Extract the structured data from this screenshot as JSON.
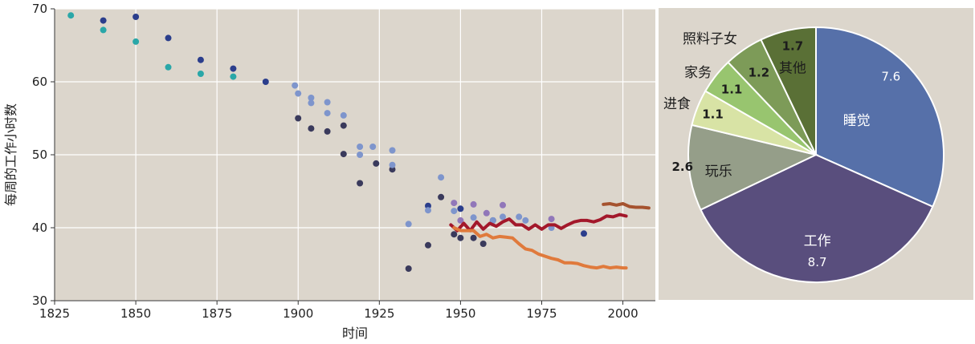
{
  "chart_data": [
    {
      "type": "scatter",
      "xlabel": "时间",
      "ylabel": "每周的工作小时数",
      "xlim": [
        1825,
        2010
      ],
      "ylim": [
        30,
        70
      ],
      "xticks": [
        "1825",
        "1850",
        "1875",
        "1900",
        "1925",
        "1950",
        "1975",
        "2000"
      ],
      "yticks": [
        "30",
        "40",
        "50",
        "60",
        "70"
      ],
      "grid": true,
      "colors": {
        "background": "#dcd6cc",
        "grid": "#ffffff",
        "teal": "#2aa7a8",
        "navy": "#2b3e8c",
        "dark": "#3a3a5c",
        "light_blue": "#7e95cc",
        "purple": "#9177b9",
        "dark_red": "#a3182b",
        "orange": "#e07a3c",
        "brown": "#a5522e"
      },
      "series": [
        {
          "color": "teal",
          "kind": "points",
          "points": [
            [
              1830,
              69.1
            ],
            [
              1840,
              67.1
            ],
            [
              1850,
              65.5
            ],
            [
              1860,
              62.0
            ],
            [
              1870,
              61.1
            ],
            [
              1880,
              60.7
            ]
          ]
        },
        {
          "color": "navy",
          "kind": "points",
          "points": [
            [
              1840,
              68.4
            ],
            [
              1850,
              68.9
            ],
            [
              1860,
              66.0
            ],
            [
              1870,
              63.0
            ],
            [
              1880,
              61.8
            ],
            [
              1890,
              60.0
            ],
            [
              1940,
              43.0
            ],
            [
              1950,
              42.6
            ],
            [
              1960,
              41.0
            ],
            [
              1988,
              39.2
            ]
          ]
        },
        {
          "color": "dark",
          "kind": "points",
          "points": [
            [
              1900,
              55.0
            ],
            [
              1904,
              53.6
            ],
            [
              1909,
              53.2
            ],
            [
              1914,
              54.0
            ],
            [
              1914,
              50.1
            ],
            [
              1919,
              46.1
            ],
            [
              1924,
              48.8
            ],
            [
              1929,
              48.0
            ],
            [
              1934,
              34.4
            ],
            [
              1940,
              37.6
            ],
            [
              1944,
              44.2
            ],
            [
              1948,
              39.1
            ],
            [
              1950,
              38.6
            ],
            [
              1954,
              38.6
            ],
            [
              1957,
              37.8
            ]
          ]
        },
        {
          "color": "light_blue",
          "kind": "points",
          "points": [
            [
              1899,
              59.5
            ],
            [
              1900,
              58.4
            ],
            [
              1904,
              57.8
            ],
            [
              1904,
              57.1
            ],
            [
              1909,
              57.2
            ],
            [
              1909,
              55.7
            ],
            [
              1914,
              55.4
            ],
            [
              1919,
              51.1
            ],
            [
              1919,
              50.0
            ],
            [
              1923,
              51.1
            ],
            [
              1929,
              50.6
            ],
            [
              1929,
              48.6
            ],
            [
              1934,
              40.5
            ],
            [
              1940,
              42.4
            ],
            [
              1944,
              46.9
            ],
            [
              1948,
              42.3
            ],
            [
              1954,
              41.4
            ],
            [
              1960,
              41.0
            ],
            [
              1963,
              41.5
            ],
            [
              1968,
              41.5
            ],
            [
              1970,
              41.0
            ],
            [
              1978,
              40.0
            ]
          ]
        },
        {
          "color": "purple",
          "kind": "points",
          "points": [
            [
              1948,
              43.4
            ],
            [
              1950,
              41.0
            ],
            [
              1954,
              43.2
            ],
            [
              1958,
              42.0
            ],
            [
              1963,
              43.1
            ],
            [
              1978,
              41.2
            ]
          ]
        },
        {
          "color": "dark_red",
          "kind": "line",
          "points": [
            [
              1947,
              40.4
            ],
            [
              1949,
              39.6
            ],
            [
              1951,
              40.6
            ],
            [
              1953,
              39.6
            ],
            [
              1955,
              40.8
            ],
            [
              1957,
              39.8
            ],
            [
              1959,
              40.6
            ],
            [
              1961,
              40.2
            ],
            [
              1963,
              40.8
            ],
            [
              1965,
              41.2
            ],
            [
              1967,
              40.4
            ],
            [
              1969,
              40.4
            ],
            [
              1971,
              39.8
            ],
            [
              1973,
              40.4
            ],
            [
              1975,
              39.8
            ],
            [
              1977,
              40.4
            ],
            [
              1979,
              40.4
            ],
            [
              1981,
              39.9
            ],
            [
              1983,
              40.4
            ],
            [
              1985,
              40.8
            ],
            [
              1987,
              41.0
            ],
            [
              1989,
              41.0
            ],
            [
              1991,
              40.8
            ],
            [
              1993,
              41.1
            ],
            [
              1995,
              41.6
            ],
            [
              1997,
              41.5
            ],
            [
              1999,
              41.8
            ],
            [
              2001,
              41.6
            ]
          ]
        },
        {
          "color": "orange",
          "kind": "line",
          "points": [
            [
              1948,
              40.0
            ],
            [
              1950,
              39.6
            ],
            [
              1952,
              39.6
            ],
            [
              1954,
              39.6
            ],
            [
              1956,
              38.8
            ],
            [
              1958,
              39.1
            ],
            [
              1960,
              38.6
            ],
            [
              1962,
              38.8
            ],
            [
              1964,
              38.7
            ],
            [
              1966,
              38.6
            ],
            [
              1968,
              37.8
            ],
            [
              1970,
              37.1
            ],
            [
              1972,
              36.9
            ],
            [
              1974,
              36.4
            ],
            [
              1976,
              36.1
            ],
            [
              1978,
              35.8
            ],
            [
              1980,
              35.6
            ],
            [
              1982,
              35.2
            ],
            [
              1984,
              35.2
            ],
            [
              1986,
              35.1
            ],
            [
              1988,
              34.8
            ],
            [
              1990,
              34.6
            ],
            [
              1992,
              34.5
            ],
            [
              1994,
              34.7
            ],
            [
              1996,
              34.5
            ],
            [
              1998,
              34.6
            ],
            [
              2000,
              34.5
            ],
            [
              2001,
              34.5
            ]
          ]
        },
        {
          "color": "brown",
          "kind": "line",
          "points": [
            [
              1994,
              43.2
            ],
            [
              1996,
              43.3
            ],
            [
              1998,
              43.1
            ],
            [
              2000,
              43.3
            ],
            [
              2002,
              42.9
            ],
            [
              2004,
              42.8
            ],
            [
              2006,
              42.8
            ],
            [
              2008,
              42.7
            ]
          ]
        }
      ]
    },
    {
      "type": "pie",
      "slices": [
        {
          "label": "睡觉",
          "value": 7.6,
          "value_text": "7.6",
          "color": "#5670a9"
        },
        {
          "label": "工作",
          "value": 8.7,
          "value_text": "8.7",
          "color": "#594e7d"
        },
        {
          "label": "玩乐",
          "value": 2.6,
          "value_text": "2.6",
          "color": "#959e89"
        },
        {
          "label": "进食",
          "value": 1.1,
          "value_text": "1.1",
          "color": "#d8e3a5"
        },
        {
          "label": "家务",
          "value": 1.1,
          "value_text": "1.1",
          "color": "#98c56f"
        },
        {
          "label": "照料子女",
          "value": 1.2,
          "value_text": "1.2",
          "color": "#7d9b58"
        },
        {
          "label": "其他",
          "value": 1.7,
          "value_text": "1.7",
          "color": "#5a7036"
        }
      ]
    }
  ]
}
